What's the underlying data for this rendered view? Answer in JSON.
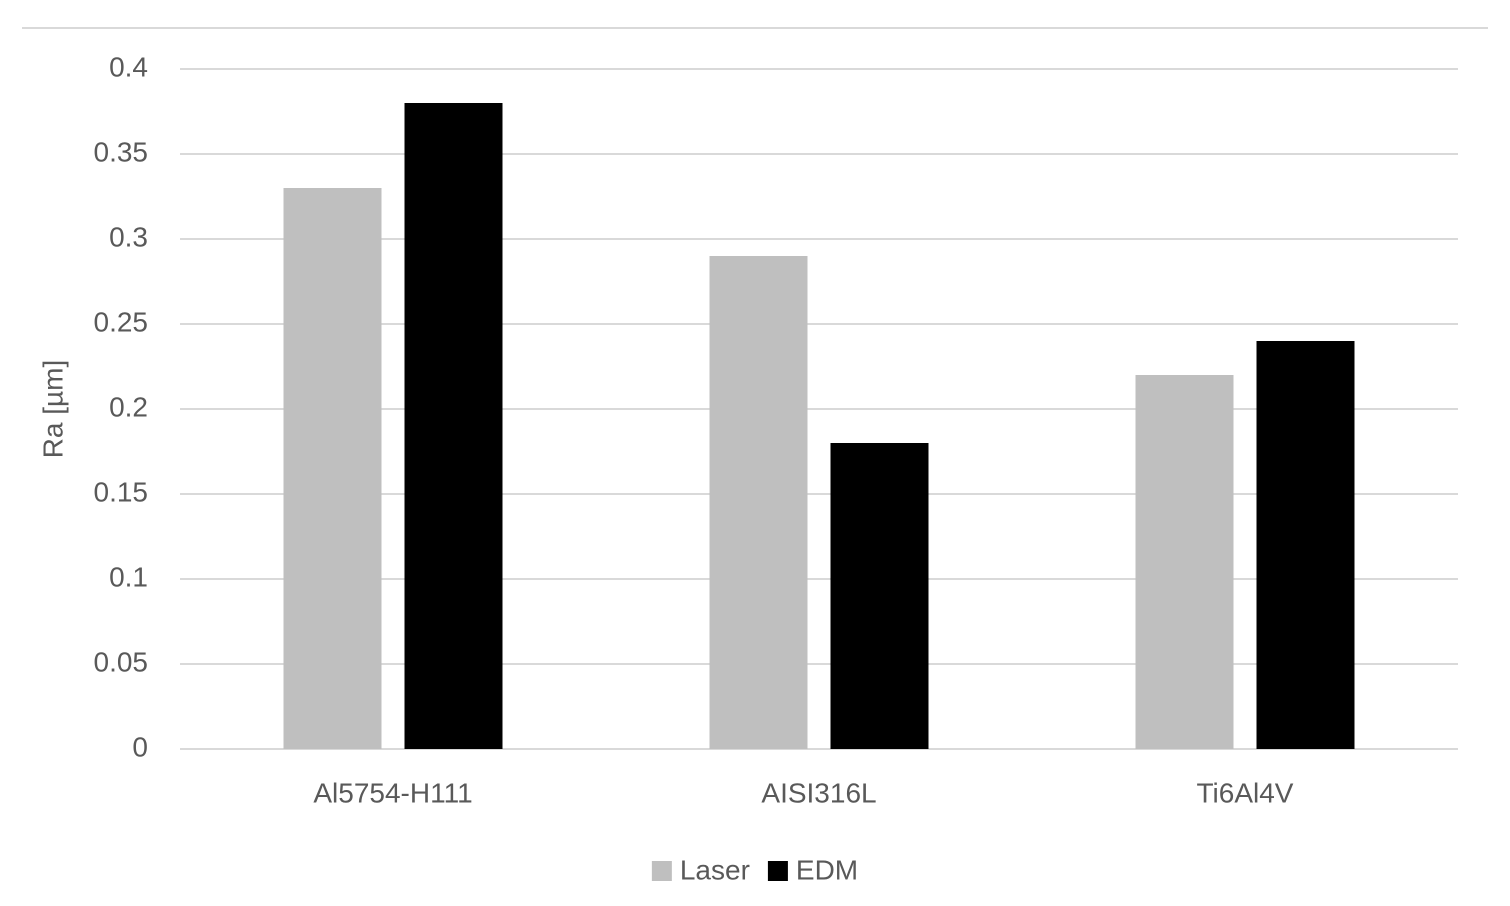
{
  "chart_data": {
    "type": "bar",
    "y_label": "Ra [µm]",
    "categories": [
      "Al5754-H111",
      "AISI316L",
      "Ti6Al4V"
    ],
    "series": [
      {
        "name": "Laser",
        "color": "#bfbfbf",
        "values": [
          0.33,
          0.29,
          0.22
        ]
      },
      {
        "name": "EDM",
        "color": "#000000",
        "values": [
          0.38,
          0.18,
          0.24
        ]
      }
    ],
    "ylim": [
      0,
      0.4
    ],
    "yticks": [
      0,
      0.05,
      0.1,
      0.15,
      0.2,
      0.25,
      0.3,
      0.35,
      0.4
    ],
    "grid": true,
    "legend": "bottom"
  }
}
